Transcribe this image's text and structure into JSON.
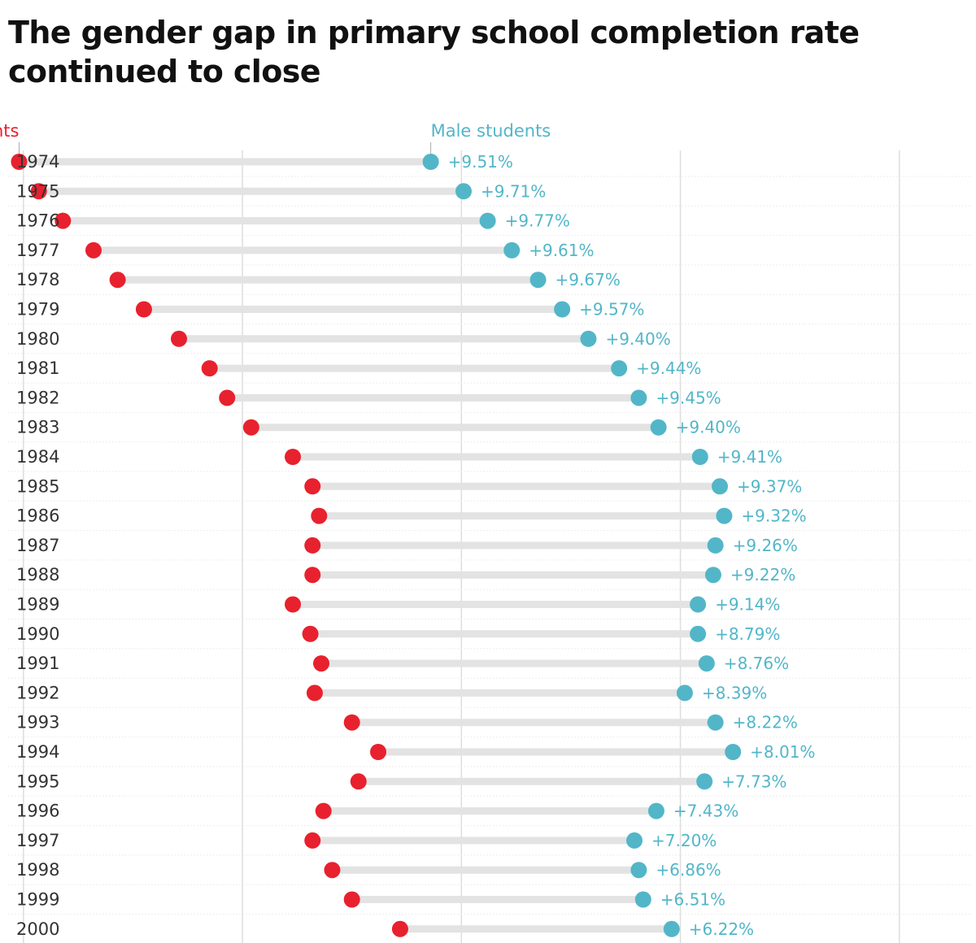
{
  "title": "The gender gap in primary school completion rate continued to close",
  "colors": {
    "female": "#e8212e",
    "male": "#52b6c8",
    "connector": "#e3e3e3",
    "grid": "#dddddd",
    "text": "#111111"
  },
  "chart_data": {
    "type": "dumbbell",
    "title": "The gender gap in primary school completion rate continued to close",
    "series": [
      {
        "name": "Female students",
        "label": "Female students",
        "values": [
          25.8,
          26.7,
          27.8,
          29.2,
          30.3,
          31.5,
          33.1,
          34.5,
          35.3,
          36.4,
          38.3,
          39.2,
          39.5,
          39.2,
          39.2,
          38.3,
          39.1,
          39.6,
          39.3,
          41.0,
          42.2,
          41.3,
          39.7,
          39.2,
          40.1,
          41.0,
          43.2
        ]
      },
      {
        "name": "Male students",
        "label": "Male students",
        "values": [
          44.6,
          46.1,
          47.2,
          48.3,
          49.5,
          50.6,
          51.8,
          53.2,
          54.1,
          55.0,
          56.9,
          57.8,
          58.0,
          57.6,
          57.5,
          56.8,
          56.8,
          57.2,
          56.2,
          57.6,
          58.4,
          57.1,
          54.9,
          53.9,
          54.1,
          54.3,
          55.6
        ]
      }
    ],
    "categories": [
      "1974",
      "1975",
      "1976",
      "1977",
      "1978",
      "1979",
      "1980",
      "1981",
      "1982",
      "1983",
      "1984",
      "1985",
      "1986",
      "1987",
      "1988",
      "1989",
      "1990",
      "1991",
      "1992",
      "1993",
      "1994",
      "1995",
      "1996",
      "1997",
      "1998",
      "1999",
      "2000"
    ],
    "gap_labels": [
      "+9.51%",
      "+9.71%",
      "+9.77%",
      "+9.61%",
      "+9.67%",
      "+9.57%",
      "+9.40%",
      "+9.44%",
      "+9.45%",
      "+9.40%",
      "+9.41%",
      "+9.37%",
      "+9.32%",
      "+9.26%",
      "+9.22%",
      "+9.14%",
      "+8.79%",
      "+8.76%",
      "+8.39%",
      "+8.22%",
      "+8.01%",
      "+7.73%",
      "+7.43%",
      "+7.20%",
      "+6.86%",
      "+6.51%",
      "+6.22%"
    ],
    "xlim": [
      25.3,
      69.5
    ],
    "gridlines": [
      26,
      36,
      46,
      56,
      66
    ],
    "grid": true
  }
}
